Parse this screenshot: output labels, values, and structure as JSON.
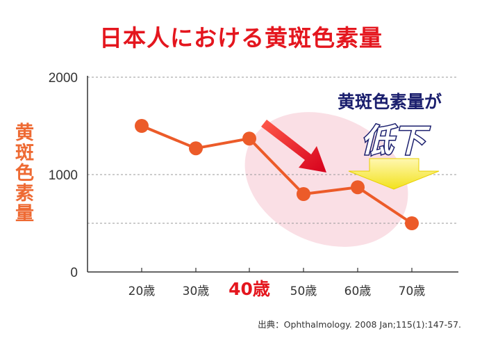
{
  "chart_data": {
    "type": "line",
    "title": "日本人における黄斑色素量",
    "ylabel": "黄斑色素量",
    "categories": [
      "20歳",
      "30歳",
      "40歳",
      "50歳",
      "60歳",
      "70歳"
    ],
    "highlight_category": "40歳",
    "values": [
      1500,
      1270,
      1370,
      800,
      870,
      500
    ],
    "ylim": [
      0,
      2000
    ],
    "yticks": [
      "0",
      "1000",
      "2000"
    ],
    "grid": true,
    "line_color": "#ec5b29",
    "annotation": {
      "line1": "黄斑色素量が",
      "line2": "低下"
    },
    "source": "出典：Ophthalmology. 2008 Jan;115(1):147-57."
  }
}
